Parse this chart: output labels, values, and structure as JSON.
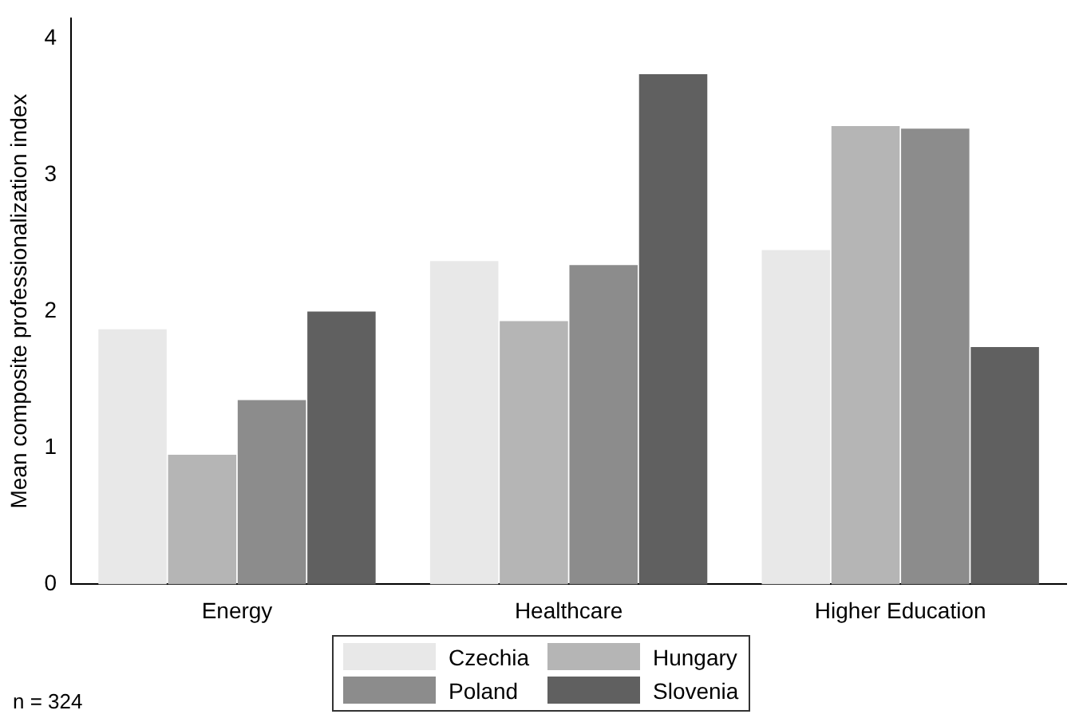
{
  "chart_data": {
    "type": "bar",
    "ylabel": "Mean composite professionalization index",
    "categories": [
      "Energy",
      "Healthcare",
      "Higher Education"
    ],
    "series": [
      {
        "name": "Czechia",
        "color": "#e8e8e8",
        "values": [
          1.87,
          2.37,
          2.45
        ]
      },
      {
        "name": "Hungary",
        "color": "#b5b5b5",
        "values": [
          0.95,
          1.93,
          3.36
        ]
      },
      {
        "name": "Poland",
        "color": "#8c8c8c",
        "values": [
          1.35,
          2.34,
          3.34
        ]
      },
      {
        "name": "Slovenia",
        "color": "#606060",
        "values": [
          2.0,
          3.74,
          1.74
        ]
      }
    ],
    "ylim": [
      0,
      4.15
    ],
    "yticks": [
      0,
      1,
      2,
      3,
      4
    ],
    "grid": false,
    "legend": "bottom",
    "annotations": [
      "n = 324"
    ]
  }
}
